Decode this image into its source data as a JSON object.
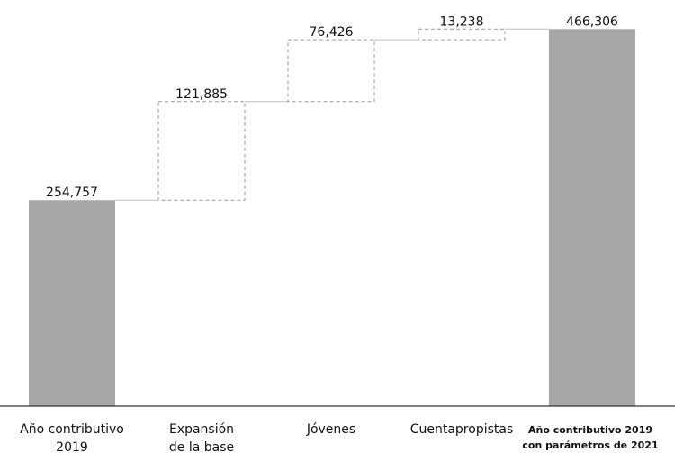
{
  "chart_data": {
    "type": "bar",
    "subtype": "waterfall",
    "categories": [
      [
        "Año contributivo",
        "2019"
      ],
      [
        "Expansión",
        "de la base"
      ],
      [
        "Jóvenes"
      ],
      [
        "Cuentapropistas"
      ],
      [
        "Año contributivo 2019",
        "con parámetros de 2021"
      ]
    ],
    "values": [
      254757,
      121885,
      76426,
      13238,
      466306
    ],
    "value_labels": [
      "254,757",
      "121,885",
      "76,426",
      "13,238",
      "466,306"
    ],
    "kinds": [
      "total",
      "increment",
      "increment",
      "increment",
      "total"
    ],
    "ylim": [
      0,
      480000
    ],
    "title": "",
    "xlabel": "",
    "ylabel": "",
    "grid": false,
    "legend": "none",
    "colors": {
      "total_fill": "#a6a6a6",
      "increment_stroke": "#9a9a9a",
      "connector": "#bdbdbd",
      "axis": "#333333"
    }
  }
}
